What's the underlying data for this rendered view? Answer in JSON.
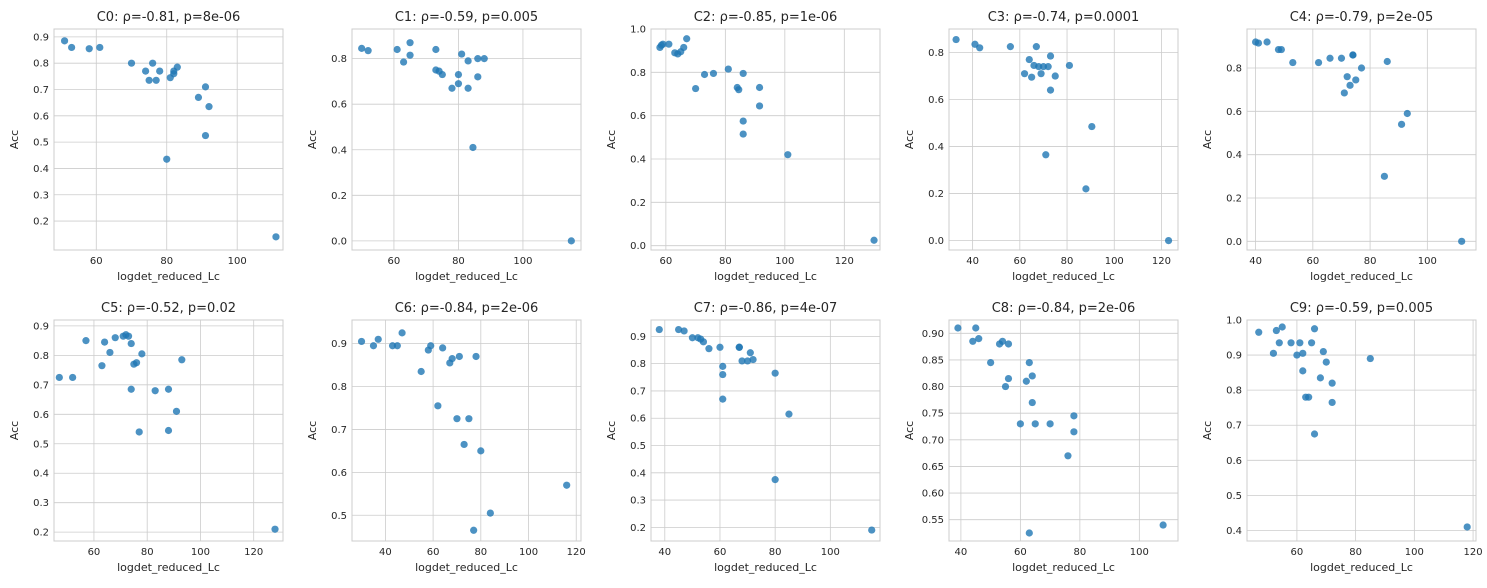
{
  "point_color": "#1f77b4",
  "grid_color": "#cccccc",
  "chart_data": [
    {
      "type": "scatter",
      "title": "C0: ρ=-0.81, p=8e-06",
      "xlabel": "logdet_reduced_Lc",
      "ylabel": "Acc",
      "xlim": [
        48,
        113
      ],
      "ylim": [
        0.09,
        0.93
      ],
      "xticks": [
        60,
        80,
        100
      ],
      "yticks": [
        0.2,
        0.3,
        0.4,
        0.5,
        0.6,
        0.7,
        0.8,
        0.9
      ],
      "x": [
        51,
        53,
        58,
        61,
        70,
        74,
        75,
        76,
        77,
        78,
        81,
        82,
        83,
        82,
        89,
        91,
        92,
        91,
        80,
        111
      ],
      "y": [
        0.885,
        0.86,
        0.855,
        0.86,
        0.8,
        0.77,
        0.735,
        0.8,
        0.735,
        0.77,
        0.745,
        0.77,
        0.785,
        0.76,
        0.67,
        0.71,
        0.635,
        0.525,
        0.435,
        0.14
      ]
    },
    {
      "type": "scatter",
      "title": "C1: ρ=-0.59, p=0.005",
      "xlabel": "logdet_reduced_Lc",
      "ylabel": "Acc",
      "xlim": [
        47,
        118
      ],
      "ylim": [
        -0.04,
        0.93
      ],
      "xticks": [
        60,
        80,
        100
      ],
      "yticks": [
        0.0,
        0.2,
        0.4,
        0.6,
        0.8
      ],
      "x": [
        50,
        52,
        61,
        65,
        65,
        73,
        73,
        74,
        75,
        78,
        80,
        80,
        81,
        83,
        83,
        86,
        86,
        88,
        63,
        84.5,
        115
      ],
      "y": [
        0.845,
        0.835,
        0.84,
        0.87,
        0.815,
        0.84,
        0.75,
        0.745,
        0.73,
        0.67,
        0.69,
        0.73,
        0.82,
        0.79,
        0.67,
        0.8,
        0.72,
        0.8,
        0.785,
        0.41,
        0.0
      ]
    },
    {
      "type": "scatter",
      "title": "C2: ρ=-0.85, p=1e-06",
      "xlabel": "logdet_reduced_Lc",
      "ylabel": "Acc",
      "xlim": [
        55,
        132
      ],
      "ylim": [
        -0.02,
        1.0
      ],
      "xticks": [
        60,
        80,
        100,
        120
      ],
      "yticks": [
        0.0,
        0.2,
        0.4,
        0.6,
        0.8,
        1.0
      ],
      "x": [
        58,
        58.5,
        59,
        61,
        63,
        64,
        65,
        66,
        67,
        70,
        73,
        76,
        81,
        84,
        84.5,
        86,
        91.5,
        91.5,
        86,
        86,
        101,
        130
      ],
      "y": [
        0.915,
        0.925,
        0.93,
        0.93,
        0.89,
        0.885,
        0.895,
        0.915,
        0.955,
        0.725,
        0.79,
        0.795,
        0.815,
        0.73,
        0.72,
        0.795,
        0.73,
        0.645,
        0.575,
        0.515,
        0.42,
        0.025
      ]
    },
    {
      "type": "scatter",
      "title": "C3: ρ=-0.74, p=0.0001",
      "xlabel": "logdet_reduced_Lc",
      "ylabel": "Acc",
      "xlim": [
        30,
        127
      ],
      "ylim": [
        -0.04,
        0.9
      ],
      "xticks": [
        40,
        60,
        80,
        100,
        120
      ],
      "yticks": [
        0.0,
        0.2,
        0.4,
        0.6,
        0.8
      ],
      "x": [
        33,
        41,
        43,
        56,
        62,
        64,
        65,
        66,
        67,
        68,
        69,
        70,
        72,
        73,
        73,
        75,
        81,
        71,
        90.5,
        88,
        123
      ],
      "y": [
        0.855,
        0.835,
        0.82,
        0.825,
        0.71,
        0.77,
        0.695,
        0.745,
        0.825,
        0.74,
        0.71,
        0.74,
        0.74,
        0.785,
        0.64,
        0.7,
        0.745,
        0.365,
        0.485,
        0.22,
        0.0
      ]
    },
    {
      "type": "scatter",
      "title": "C4: ρ=-0.79, p=2e-05",
      "xlabel": "logdet_reduced_Lc",
      "ylabel": "Acc",
      "xlim": [
        37,
        117
      ],
      "ylim": [
        -0.04,
        0.98
      ],
      "xticks": [
        40,
        60,
        80,
        100
      ],
      "yticks": [
        0.0,
        0.2,
        0.4,
        0.6,
        0.8
      ],
      "x": [
        40,
        41,
        44,
        48,
        49,
        53,
        62,
        66,
        70,
        72,
        73,
        74,
        74,
        75,
        77,
        71,
        86,
        91,
        93,
        85,
        112
      ],
      "y": [
        0.92,
        0.915,
        0.92,
        0.885,
        0.885,
        0.825,
        0.825,
        0.845,
        0.845,
        0.76,
        0.72,
        0.86,
        0.86,
        0.745,
        0.8,
        0.685,
        0.83,
        0.54,
        0.59,
        0.3,
        0.0
      ]
    },
    {
      "type": "scatter",
      "title": "C5: ρ=-0.52, p=0.02",
      "xlabel": "logdet_reduced_Lc",
      "ylabel": "Acc",
      "xlim": [
        45,
        131
      ],
      "ylim": [
        0.17,
        0.92
      ],
      "xticks": [
        60,
        80,
        100,
        120
      ],
      "yticks": [
        0.2,
        0.3,
        0.4,
        0.5,
        0.6,
        0.7,
        0.8,
        0.9
      ],
      "x": [
        47,
        52,
        57,
        63,
        64,
        66,
        68,
        71,
        72,
        73,
        74,
        75,
        76,
        78,
        74,
        83,
        88,
        91,
        93,
        77,
        88,
        128
      ],
      "y": [
        0.725,
        0.725,
        0.85,
        0.765,
        0.845,
        0.81,
        0.86,
        0.865,
        0.87,
        0.865,
        0.84,
        0.77,
        0.775,
        0.805,
        0.685,
        0.68,
        0.685,
        0.61,
        0.785,
        0.54,
        0.545,
        0.21
      ]
    },
    {
      "type": "scatter",
      "title": "C6: ρ=-0.84, p=2e-06",
      "xlabel": "logdet_reduced_Lc",
      "ylabel": "Acc",
      "xlim": [
        26,
        122
      ],
      "ylim": [
        0.44,
        0.955
      ],
      "xticks": [
        40,
        60,
        80,
        100,
        120
      ],
      "yticks": [
        0.5,
        0.6,
        0.7,
        0.8,
        0.9
      ],
      "x": [
        30,
        35,
        37,
        43,
        45,
        47,
        55,
        58,
        59,
        62,
        64,
        67,
        68,
        70,
        71,
        73,
        75,
        78,
        80,
        84,
        77,
        116
      ],
      "y": [
        0.905,
        0.895,
        0.91,
        0.895,
        0.895,
        0.925,
        0.835,
        0.885,
        0.895,
        0.755,
        0.89,
        0.855,
        0.865,
        0.725,
        0.87,
        0.665,
        0.725,
        0.87,
        0.65,
        0.505,
        0.465,
        0.57
      ]
    },
    {
      "type": "scatter",
      "title": "C7: ρ=-0.86, p=4e-07",
      "xlabel": "logdet_reduced_Lc",
      "ylabel": "Acc",
      "xlim": [
        35,
        118
      ],
      "ylim": [
        0.15,
        0.96
      ],
      "xticks": [
        40,
        60,
        80,
        100
      ],
      "yticks": [
        0.2,
        0.3,
        0.4,
        0.5,
        0.6,
        0.7,
        0.8,
        0.9
      ],
      "x": [
        38,
        45,
        47,
        50,
        52,
        53,
        54,
        56,
        60,
        61,
        61,
        67,
        67,
        68,
        70,
        71,
        72,
        61,
        80,
        85,
        80,
        115
      ],
      "y": [
        0.925,
        0.925,
        0.92,
        0.895,
        0.895,
        0.89,
        0.88,
        0.855,
        0.86,
        0.76,
        0.79,
        0.86,
        0.86,
        0.81,
        0.81,
        0.84,
        0.815,
        0.67,
        0.765,
        0.615,
        0.375,
        0.19
      ]
    },
    {
      "type": "scatter",
      "title": "C8: ρ=-0.84, p=2e-06",
      "xlabel": "logdet_reduced_Lc",
      "ylabel": "Acc",
      "xlim": [
        36,
        113
      ],
      "ylim": [
        0.51,
        0.925
      ],
      "xticks": [
        40,
        60,
        80,
        100
      ],
      "yticks": [
        0.55,
        0.6,
        0.65,
        0.7,
        0.75,
        0.8,
        0.85,
        0.9
      ],
      "x": [
        39,
        44,
        45,
        46,
        50,
        53,
        54,
        55,
        56,
        56,
        60,
        62,
        63,
        64,
        64,
        65,
        70,
        76,
        78,
        78,
        63,
        108
      ],
      "y": [
        0.91,
        0.885,
        0.91,
        0.89,
        0.845,
        0.88,
        0.885,
        0.8,
        0.88,
        0.815,
        0.73,
        0.81,
        0.845,
        0.77,
        0.82,
        0.73,
        0.73,
        0.67,
        0.745,
        0.715,
        0.525,
        0.54
      ]
    },
    {
      "type": "scatter",
      "title": "C9: ρ=-0.59, p=0.005",
      "xlabel": "logdet_reduced_Lc",
      "ylabel": "Acc",
      "xlim": [
        43,
        121
      ],
      "ylim": [
        0.37,
        1.0
      ],
      "xticks": [
        60,
        80,
        100,
        120
      ],
      "yticks": [
        0.4,
        0.5,
        0.6,
        0.7,
        0.8,
        0.9,
        1.0
      ],
      "x": [
        47,
        52,
        53,
        54,
        55,
        58,
        60,
        61,
        62,
        63,
        64,
        65,
        66,
        68,
        69,
        70,
        72,
        72,
        62,
        66,
        85,
        118
      ],
      "y": [
        0.965,
        0.905,
        0.97,
        0.935,
        0.98,
        0.935,
        0.9,
        0.935,
        0.855,
        0.78,
        0.78,
        0.935,
        0.975,
        0.835,
        0.91,
        0.88,
        0.82,
        0.765,
        0.905,
        0.675,
        0.89,
        0.41
      ]
    }
  ]
}
